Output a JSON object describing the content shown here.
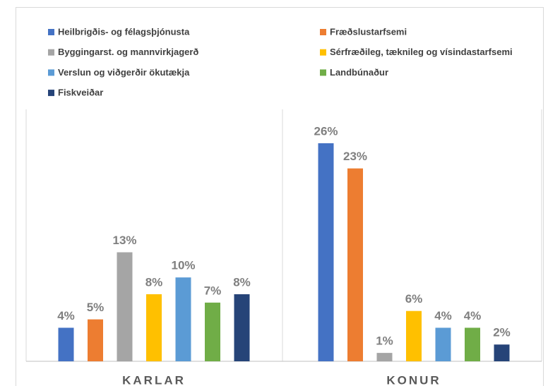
{
  "chart_data": {
    "type": "bar",
    "categories": [
      "KARLAR",
      "KONUR"
    ],
    "series": [
      {
        "name": "Heilbrigðis- og félagsþjónusta",
        "color": "#4472c4",
        "values": [
          4,
          26
        ],
        "value_labels": [
          "4%",
          "26%"
        ]
      },
      {
        "name": "Fræðslustarfsemi",
        "color": "#ed7d31",
        "values": [
          5,
          23
        ],
        "value_labels": [
          "5%",
          "23%"
        ]
      },
      {
        "name": "Byggingarst. og mannvirkjagerð",
        "color": "#a5a5a5",
        "values": [
          13,
          1
        ],
        "value_labels": [
          "13%",
          "1%"
        ]
      },
      {
        "name": "Sérfræðileg, tæknileg og vísindastarfsemi",
        "color": "#ffc000",
        "values": [
          8,
          6
        ],
        "value_labels": [
          "8%",
          "6%"
        ]
      },
      {
        "name": "Verslun og viðgerðir ökutækja",
        "color": "#5b9bd5",
        "values": [
          10,
          4
        ],
        "value_labels": [
          "10%",
          "4%"
        ]
      },
      {
        "name": "Landbúnaður",
        "color": "#70ad47",
        "values": [
          7,
          4
        ],
        "value_labels": [
          "7%",
          "4%"
        ]
      },
      {
        "name": "Fiskveiðar",
        "color": "#264478",
        "values": [
          8,
          2
        ],
        "value_labels": [
          "8%",
          "2%"
        ]
      }
    ],
    "legend": "top"
  }
}
